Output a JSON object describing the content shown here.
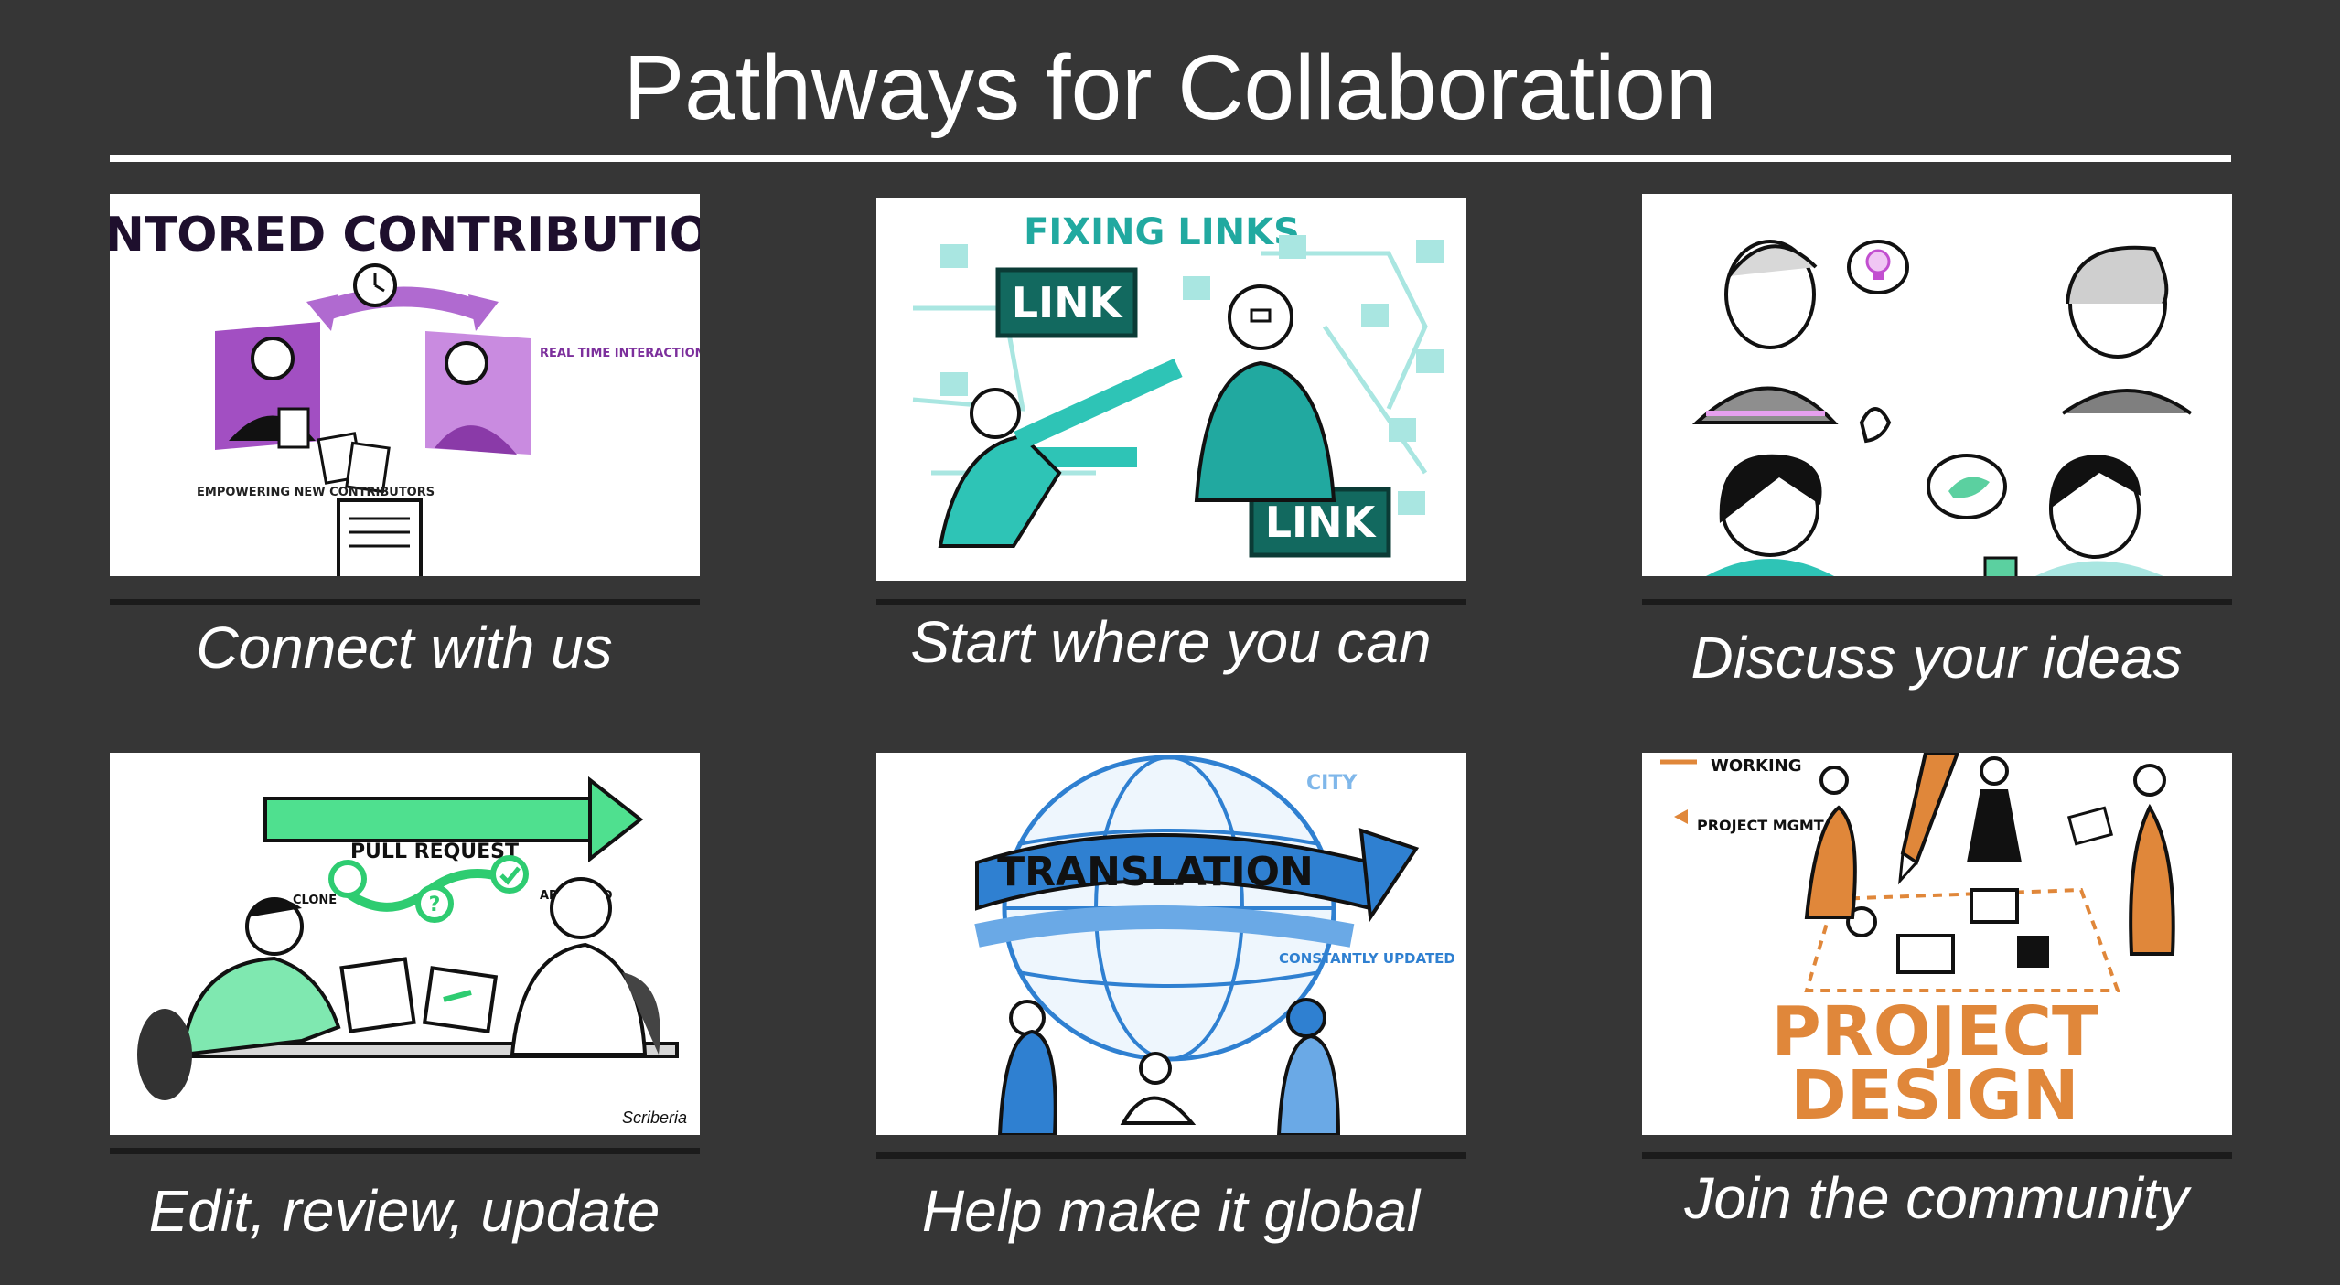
{
  "title": "Pathways for Collaboration",
  "colors": {
    "background": "#363636",
    "title_text": "#ffffff",
    "purple_accent": "#9b59b6",
    "teal_accent": "#2ec4b6",
    "green_accent": "#2ecc71",
    "blue_accent": "#2f80d1",
    "orange_accent": "#e0873a"
  },
  "cards": [
    {
      "caption": "Connect with us",
      "illustration": {
        "heading": "MENTORED CONTRIBUTIONS",
        "note_right": "REAL TIME INTERACTIONS WITH EXPERIENCED CONTRIBUTORS",
        "note_left": "EMPOWERING NEW CONTRIBUTORS"
      }
    },
    {
      "caption": "Start where you can",
      "illustration": {
        "heading": "FIXING LINKS",
        "label_top": "LINK",
        "label_bottom": "LINK"
      }
    },
    {
      "caption": "Discuss your ideas",
      "illustration": {}
    },
    {
      "caption": "Edit, review, update",
      "illustration": {
        "arrow_label": "PULL REQUEST",
        "step_left": "CLONE",
        "step_right": "APPROVED",
        "signature": "Scriberia"
      }
    },
    {
      "caption": "Help make it global",
      "illustration": {
        "banner": "TRANSLATION",
        "note": "CONSTANTLY UPDATED",
        "top_fragment": "CITY"
      }
    },
    {
      "caption": "Join the community",
      "illustration": {
        "note_top": "WORKING",
        "note_left": "PROJECT MGMT",
        "big_line1": "PROJECT",
        "big_line2": "DESIGN"
      }
    }
  ],
  "icons": [
    "clock-icon",
    "lightbulb-icon",
    "bird-icon",
    "check-icon",
    "question-icon",
    "globe-icon",
    "pencil-icon"
  ]
}
